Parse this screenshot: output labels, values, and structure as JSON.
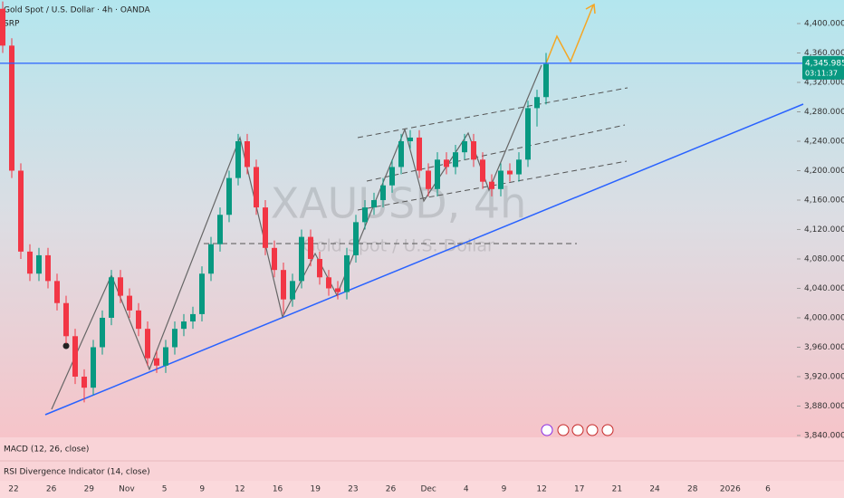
{
  "chart_data": {
    "type": "candlestick",
    "title": "Gold Spot / U.S. Dollar · 4h · OANDA",
    "subtitle": "SRP",
    "watermark": "XAUUSD, 4h",
    "watermark_subtitle": "Gold Spot / U.S. Dollar",
    "categories": [
      "22",
      "26",
      "29",
      "Nov",
      "5",
      "9",
      "12",
      "16",
      "19",
      "23",
      "26",
      "Dec",
      "4",
      "9",
      "12",
      "17",
      "21",
      "24",
      "28",
      "2026",
      "6"
    ],
    "open": [
      4420,
      4370,
      4200,
      4090,
      4060,
      4085,
      4050,
      4020,
      3975,
      3920,
      3905,
      3960,
      4000,
      4055,
      4030,
      4010,
      3985,
      3945,
      3935,
      3960,
      3985,
      3995,
      4005,
      4060,
      4100,
      4140,
      4190,
      4240,
      4205,
      4150,
      4095,
      4065,
      4025,
      4050,
      4110,
      4080,
      4055,
      4040,
      4035,
      4085,
      4130,
      4150,
      4160,
      4180,
      4205,
      4240,
      4245,
      4200,
      4175,
      4215,
      4205,
      4225,
      4240,
      4215,
      4185,
      4175,
      4200,
      4195,
      4215,
      4285,
      4300
    ],
    "high": [
      4430,
      4380,
      4210,
      4100,
      4095,
      4095,
      4060,
      4030,
      3985,
      3930,
      3970,
      4010,
      4065,
      4065,
      4040,
      4020,
      3995,
      3955,
      3970,
      3995,
      4005,
      4015,
      4070,
      4110,
      4150,
      4200,
      4250,
      4250,
      4215,
      4160,
      4105,
      4075,
      4060,
      4120,
      4120,
      4090,
      4065,
      4050,
      4095,
      4140,
      4160,
      4170,
      4190,
      4215,
      4250,
      4255,
      4255,
      4210,
      4225,
      4225,
      4235,
      4250,
      4250,
      4225,
      4195,
      4210,
      4210,
      4225,
      4295,
      4310,
      4360
    ],
    "low": [
      4360,
      4190,
      4080,
      4050,
      4050,
      4040,
      4010,
      3965,
      3910,
      3885,
      3895,
      3950,
      3990,
      4020,
      4000,
      3975,
      3935,
      3925,
      3925,
      3950,
      3975,
      3985,
      3995,
      4050,
      4090,
      4130,
      4180,
      4195,
      4140,
      4085,
      4055,
      4005,
      4015,
      4040,
      4070,
      4045,
      4030,
      4025,
      4025,
      4075,
      4120,
      4140,
      4150,
      4170,
      4195,
      4230,
      4190,
      4165,
      4165,
      4195,
      4195,
      4215,
      4205,
      4175,
      4165,
      4165,
      4185,
      4185,
      4205,
      4260,
      4290
    ],
    "close": [
      4370,
      4200,
      4090,
      4060,
      4085,
      4050,
      4020,
      3975,
      3920,
      3905,
      3960,
      4000,
      4055,
      4030,
      4010,
      3985,
      3945,
      3935,
      3960,
      3985,
      3995,
      4005,
      4060,
      4100,
      4140,
      4190,
      4240,
      4205,
      4150,
      4095,
      4065,
      4025,
      4050,
      4110,
      4080,
      4055,
      4040,
      4035,
      4085,
      4130,
      4150,
      4160,
      4180,
      4205,
      4240,
      4245,
      4200,
      4175,
      4215,
      4205,
      4225,
      4240,
      4215,
      4185,
      4175,
      4200,
      4195,
      4215,
      4285,
      4300,
      4345
    ],
    "up_color": "#089981",
    "down_color": "#f23645",
    "ylim": [
      3837.5,
      4432
    ],
    "yticks": [
      {
        "value": 3840,
        "label": "3,840.000"
      },
      {
        "value": 3880,
        "label": "3,880.000"
      },
      {
        "value": 3920,
        "label": "3,920.000"
      },
      {
        "value": 3960,
        "label": "3,960.000"
      },
      {
        "value": 4000,
        "label": "4,000.000"
      },
      {
        "value": 4040,
        "label": "4,040.000"
      },
      {
        "value": 4080,
        "label": "4,080.000"
      },
      {
        "value": 4120,
        "label": "4,120.000"
      },
      {
        "value": 4160,
        "label": "4,160.000"
      },
      {
        "value": 4200,
        "label": "4,200.000"
      },
      {
        "value": 4240,
        "label": "4,240.000"
      },
      {
        "value": 4280,
        "label": "4,280.000"
      },
      {
        "value": 4320,
        "label": "4,320.000"
      },
      {
        "value": 4360,
        "label": "4,360.000"
      },
      {
        "value": 4400,
        "label": "4,400.000"
      }
    ],
    "last_price": {
      "value": 4345.985,
      "label": "4,345.985"
    },
    "countdown": "03:11:37",
    "indicators": [
      "MACD (12, 26, close)",
      "RSI Divergence Indicator (14, close)"
    ]
  }
}
